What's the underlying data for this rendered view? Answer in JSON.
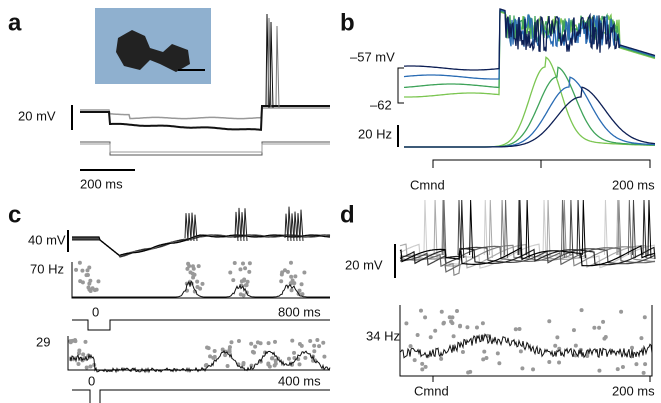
{
  "panels": [
    {
      "label": "a",
      "texts": [
        "20 mV",
        "200 ms"
      ]
    },
    {
      "label": "b",
      "texts": [
        "–57 mV",
        "–62",
        "20 Hz",
        "Cmnd",
        "200 ms"
      ]
    },
    {
      "label": "c",
      "texts": [
        "40 mV",
        "70 Hz",
        "0",
        "800 ms",
        "29",
        "0",
        "400 ms"
      ]
    },
    {
      "label": "d",
      "texts": [
        "20 mV",
        "34 Hz",
        "Cmnd",
        "200 ms"
      ]
    }
  ]
}
